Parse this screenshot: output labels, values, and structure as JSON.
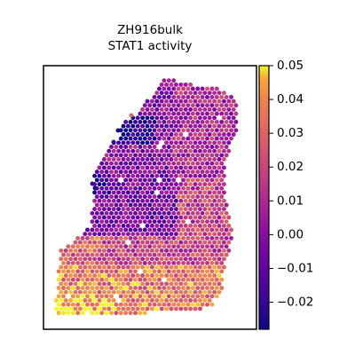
{
  "chart_data": {
    "type": "heatmap",
    "title_line1": "ZH916bulk",
    "title_line2": "STAT1 activity",
    "xlabel": "",
    "ylabel": "",
    "colormap": "plasma",
    "colorbar": {
      "vmin": -0.028,
      "vmax": 0.05,
      "ticks": [
        -0.02,
        -0.01,
        0.0,
        0.01,
        0.02,
        0.03,
        0.04,
        0.05
      ],
      "tick_labels": [
        "−0.02",
        "−0.01",
        "0.00",
        "0.01",
        "0.02",
        "0.03",
        "0.04",
        "0.05"
      ]
    },
    "spot_grid": {
      "rows": 30,
      "cols": 24,
      "description": "hexagonal spot grid, values per region",
      "region_values": [
        {
          "region": "upper-left lobe",
          "value": 0.0
        },
        {
          "region": "upper-right lobe",
          "value": 0.01
        },
        {
          "region": "center",
          "value": -0.005
        },
        {
          "region": "bottom band",
          "value": 0.035
        },
        {
          "region": "bottom-left corner",
          "value": 0.045
        },
        {
          "region": "top-left cluster",
          "value": -0.025
        }
      ]
    },
    "colors": {
      "low": "#0d0887",
      "mid": "#cc4778",
      "high": "#f0f921"
    }
  }
}
